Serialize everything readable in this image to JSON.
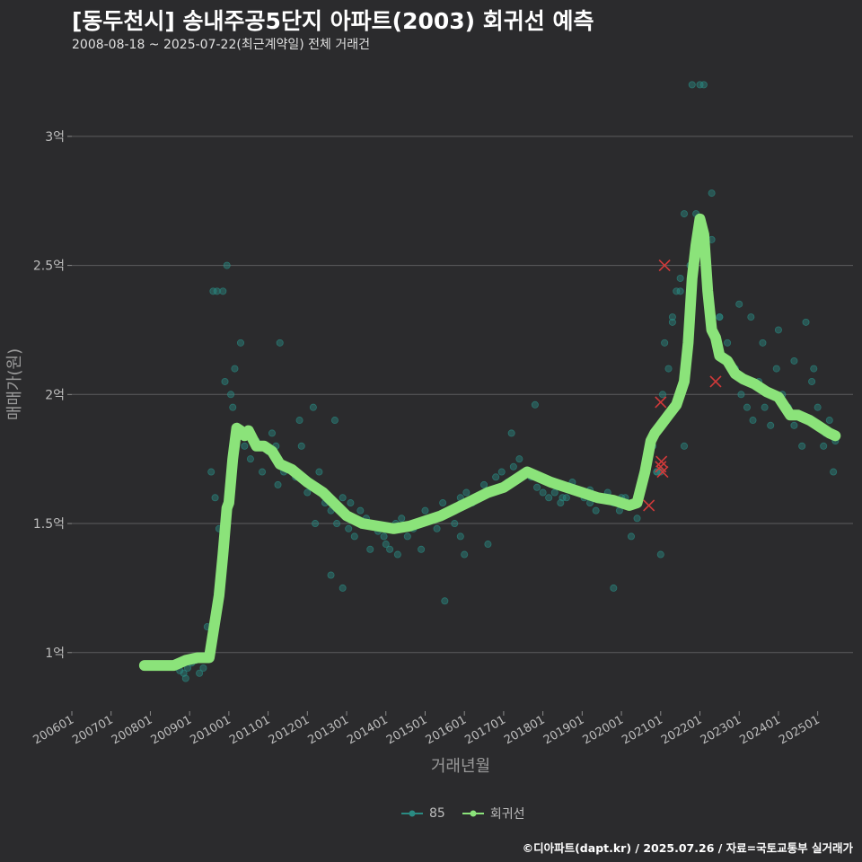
{
  "chart_data": {
    "type": "line",
    "title": "[동두천시] 송내주공5단지 아파트(2003) 회귀선 예측",
    "subtitle": "2008-08-18 ~ 2025-07-22(최근계약일) 전체 거래건",
    "xlabel": "거래년월",
    "ylabel": "매매가(원)",
    "xlim": [
      2006.0,
      2025.9
    ],
    "ylim": [
      0.78,
      3.25
    ],
    "ytick_values": [
      1.0,
      1.5,
      2.0,
      2.5,
      3.0
    ],
    "ytick_labels": [
      "1억",
      "1.5억",
      "2억",
      "2.5억",
      "3억"
    ],
    "xtick_labels": [
      "200601",
      "200701",
      "200801",
      "200901",
      "201001",
      "201101",
      "201201",
      "201301",
      "201401",
      "201501",
      "201601",
      "201701",
      "201801",
      "201901",
      "202001",
      "202101",
      "202201",
      "202301",
      "202401",
      "202501"
    ],
    "xtick_values": [
      2006,
      2007,
      2008,
      2009,
      2010,
      2011,
      2012,
      2013,
      2014,
      2015,
      2016,
      2017,
      2018,
      2019,
      2020,
      2021,
      2022,
      2023,
      2024,
      2025
    ],
    "series": [
      {
        "name": "회귀선",
        "color": "#8be37a",
        "x": [
          2007.85,
          2008.3,
          2008.6,
          2008.9,
          2009.2,
          2009.5,
          2009.75,
          2009.85,
          2009.95,
          2010.0,
          2010.1,
          2010.2,
          2010.3,
          2010.4,
          2010.5,
          2010.7,
          2010.9,
          2011.1,
          2011.3,
          2011.6,
          2012.0,
          2012.4,
          2012.8,
          2013.0,
          2013.4,
          2013.8,
          2014.2,
          2014.6,
          2015.0,
          2015.4,
          2015.8,
          2016.2,
          2016.6,
          2017.0,
          2017.3,
          2017.6,
          2017.9,
          2018.2,
          2018.6,
          2019.0,
          2019.4,
          2019.8,
          2020.2,
          2020.4,
          2020.6,
          2020.75,
          2020.85,
          2021.0,
          2021.2,
          2021.4,
          2021.6,
          2021.7,
          2021.8,
          2021.9,
          2022.0,
          2022.1,
          2022.2,
          2022.3,
          2022.4,
          2022.5,
          2022.7,
          2022.9,
          2023.1,
          2023.4,
          2023.7,
          2024.0,
          2024.3,
          2024.5,
          2024.8,
          2025.0,
          2025.3,
          2025.45
        ],
        "values": [
          0.95,
          0.95,
          0.95,
          0.97,
          0.98,
          0.98,
          1.22,
          1.38,
          1.56,
          1.58,
          1.75,
          1.87,
          1.86,
          1.84,
          1.86,
          1.8,
          1.8,
          1.78,
          1.73,
          1.71,
          1.66,
          1.62,
          1.56,
          1.53,
          1.5,
          1.49,
          1.48,
          1.49,
          1.51,
          1.53,
          1.56,
          1.59,
          1.62,
          1.64,
          1.67,
          1.7,
          1.68,
          1.66,
          1.64,
          1.62,
          1.6,
          1.59,
          1.57,
          1.58,
          1.7,
          1.82,
          1.85,
          1.88,
          1.92,
          1.96,
          2.05,
          2.2,
          2.45,
          2.58,
          2.68,
          2.62,
          2.4,
          2.25,
          2.22,
          2.15,
          2.13,
          2.08,
          2.06,
          2.04,
          2.01,
          1.99,
          1.92,
          1.92,
          1.9,
          1.88,
          1.85,
          1.84
        ]
      },
      {
        "name": "85",
        "color": "#2a8a82",
        "x": [
          2008.75,
          2008.85,
          2008.95,
          2009.05,
          2009.15,
          2009.25,
          2009.35,
          2009.45,
          2009.55,
          2009.65,
          2009.75,
          2009.85,
          2009.95,
          2010.05,
          2010.15,
          2010.25,
          2010.4,
          2010.55,
          2010.7,
          2010.85,
          2011.0,
          2011.1,
          2011.25,
          2011.4,
          2011.55,
          2011.7,
          2011.85,
          2012.0,
          2012.15,
          2012.3,
          2012.45,
          2012.6,
          2012.75,
          2012.9,
          2013.05,
          2013.2,
          2013.35,
          2013.5,
          2013.65,
          2013.8,
          2013.95,
          2014.1,
          2014.25,
          2014.4,
          2014.55,
          2014.7,
          2014.85,
          2015.0,
          2015.15,
          2015.3,
          2015.45,
          2015.6,
          2015.75,
          2015.9,
          2016.05,
          2016.2,
          2016.35,
          2016.5,
          2016.65,
          2016.8,
          2016.95,
          2017.1,
          2017.25,
          2017.4,
          2017.55,
          2017.7,
          2017.85,
          2018.0,
          2018.15,
          2018.3,
          2018.45,
          2018.6,
          2018.75,
          2018.9,
          2019.05,
          2019.2,
          2019.35,
          2019.5,
          2019.65,
          2019.8,
          2019.95,
          2020.1,
          2020.25,
          2020.4,
          2020.55,
          2020.7,
          2020.8,
          2020.9,
          2021.0,
          2021.05,
          2021.1,
          2021.15,
          2021.2,
          2021.3,
          2021.4,
          2021.5,
          2021.6,
          2021.75,
          2021.9,
          2022.1,
          2022.3,
          2022.5,
          2022.7,
          2022.9,
          2023.05,
          2023.2,
          2023.35,
          2023.5,
          2023.65,
          2023.8,
          2023.95,
          2024.1,
          2024.25,
          2024.4,
          2024.55,
          2024.7,
          2024.85,
          2025.0,
          2025.15,
          2025.3,
          2025.45,
          2009.6,
          2009.7,
          2009.9,
          2010.1,
          2011.3,
          2012.2,
          2012.6,
          2013.1,
          2014.0,
          2015.5,
          2016.0,
          2017.2,
          2018.5,
          2019.8,
          2020.9,
          2021.0,
          2021.3,
          2021.5,
          2021.8,
          2022.0,
          2022.5,
          2023.0,
          2023.3,
          2023.6,
          2024.0,
          2024.4,
          2024.9,
          2025.2,
          2008.9,
          2009.0,
          2010.3,
          2011.2,
          2012.7,
          2014.3,
          2014.9,
          2016.6,
          2019.2,
          2021.6,
          2022.3,
          2023.8,
          2024.6,
          2025.4,
          2013.6,
          2015.9,
          2017.8,
          2020.0,
          2012.9,
          2011.8
        ],
        "values": [
          0.93,
          0.92,
          0.94,
          0.96,
          0.97,
          0.92,
          0.94,
          1.1,
          1.7,
          1.6,
          1.48,
          2.4,
          2.5,
          2.0,
          2.1,
          1.85,
          1.8,
          1.75,
          1.82,
          1.7,
          1.78,
          1.85,
          1.65,
          1.7,
          1.72,
          1.68,
          1.8,
          1.62,
          1.95,
          1.7,
          1.58,
          1.55,
          1.5,
          1.6,
          1.48,
          1.45,
          1.55,
          1.52,
          1.5,
          1.47,
          1.45,
          1.4,
          1.5,
          1.52,
          1.45,
          1.48,
          1.5,
          1.55,
          1.52,
          1.48,
          1.58,
          1.55,
          1.5,
          1.6,
          1.62,
          1.58,
          1.6,
          1.65,
          1.62,
          1.68,
          1.7,
          1.66,
          1.72,
          1.75,
          1.7,
          1.68,
          1.64,
          1.62,
          1.6,
          1.62,
          1.58,
          1.6,
          1.66,
          1.62,
          1.6,
          1.58,
          1.55,
          1.6,
          1.62,
          1.58,
          1.55,
          1.6,
          1.45,
          1.52,
          1.65,
          1.75,
          1.8,
          1.7,
          1.38,
          2.0,
          2.2,
          1.9,
          2.1,
          2.3,
          2.4,
          2.45,
          2.7,
          2.5,
          2.7,
          3.2,
          2.6,
          2.3,
          2.2,
          2.1,
          2.0,
          1.95,
          1.9,
          2.05,
          1.95,
          2.0,
          2.1,
          2.0,
          1.95,
          1.88,
          1.92,
          2.28,
          2.05,
          1.95,
          1.8,
          1.9,
          1.82,
          2.4,
          2.4,
          2.05,
          1.95,
          2.2,
          1.5,
          1.3,
          1.58,
          1.42,
          1.2,
          1.38,
          1.85,
          1.6,
          1.25,
          1.7,
          1.7,
          2.28,
          2.4,
          3.2,
          3.2,
          2.3,
          2.35,
          2.3,
          2.2,
          2.25,
          2.13,
          2.1,
          1.85,
          0.9,
          0.98,
          2.2,
          1.8,
          1.9,
          1.38,
          1.4,
          1.42,
          1.63,
          1.8,
          2.78,
          1.88,
          1.8,
          1.7,
          1.4,
          1.45,
          1.96,
          1.6,
          1.25,
          1.9
        ]
      }
    ],
    "anomaly_markers": {
      "name": "이상치",
      "color": "#d23a3a",
      "x": [
        2020.7,
        2021.0,
        2021.05,
        2021.0,
        2021.02,
        2021.1,
        2022.4
      ],
      "values": [
        1.57,
        1.72,
        1.7,
        1.97,
        1.74,
        2.5,
        2.05
      ]
    },
    "legend": {
      "position": "bottom",
      "entries": [
        "85",
        "회귀선"
      ]
    }
  },
  "caption": "©디아파트(dapt.kr) / 2025.07.26 / 자료=국토교통부 실거래가"
}
